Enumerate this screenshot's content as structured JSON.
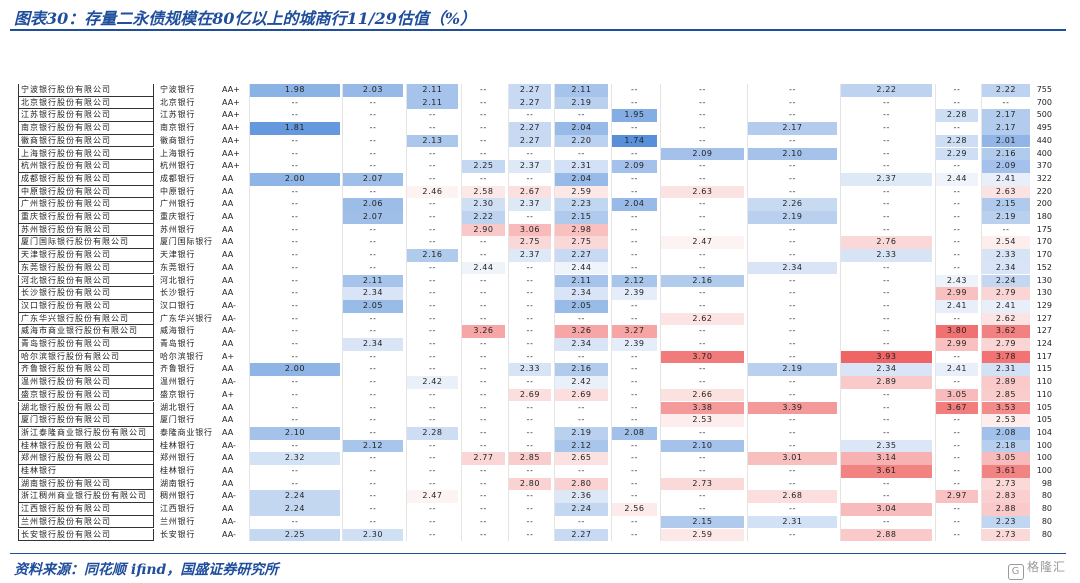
{
  "title": "图表30：存量二永债规模在80亿以上的城商行11/29估值（%）",
  "source": "资料来源：同花顺 ifind，国盛证券研究所",
  "watermark": "格隆汇",
  "colors": {
    "blue": "#4a86d6",
    "red": "#ee5a5a",
    "brand": "#1f4e9c"
  },
  "cell_scale": {
    "min": 1.74,
    "mid": 2.45,
    "max": 3.93
  },
  "rows": [
    {
      "name": "宁波银行股份有限公司",
      "short": "宁波银行",
      "rating": "AA+",
      "values": [
        "1.98",
        "2.03",
        "2.11",
        "--",
        "2.27",
        "2.11",
        "--",
        "--",
        "--",
        "2.22",
        "--",
        "2.22"
      ],
      "size": "755"
    },
    {
      "name": "北京银行股份有限公司",
      "short": "北京银行",
      "rating": "AA+",
      "values": [
        "--",
        "--",
        "2.11",
        "--",
        "2.27",
        "2.19",
        "--",
        "--",
        "--",
        "--",
        "--",
        "--"
      ],
      "size": "700"
    },
    {
      "name": "江苏银行股份有限公司",
      "short": "江苏银行",
      "rating": "AA+",
      "values": [
        "--",
        "--",
        "--",
        "--",
        "--",
        "--",
        "1.95",
        "--",
        "--",
        "--",
        "2.28",
        "2.17"
      ],
      "size": "500"
    },
    {
      "name": "南京银行股份有限公司",
      "short": "南京银行",
      "rating": "AA+",
      "values": [
        "1.81",
        "--",
        "--",
        "--",
        "2.27",
        "2.04",
        "--",
        "--",
        "2.17",
        "--",
        "--",
        "2.17"
      ],
      "size": "495"
    },
    {
      "name": "徽商银行股份有限公司",
      "short": "徽商银行",
      "rating": "AA+",
      "values": [
        "--",
        "--",
        "2.13",
        "--",
        "2.27",
        "2.20",
        "1.74",
        "--",
        "--",
        "--",
        "2.28",
        "2.01"
      ],
      "size": "440"
    },
    {
      "name": "上海银行股份有限公司",
      "short": "上海银行",
      "rating": "AA+",
      "values": [
        "--",
        "--",
        "--",
        "--",
        "--",
        "--",
        "--",
        "2.09",
        "2.10",
        "--",
        "2.29",
        "2.16"
      ],
      "size": "400"
    },
    {
      "name": "杭州银行股份有限公司",
      "short": "杭州银行",
      "rating": "AA+",
      "values": [
        "--",
        "--",
        "--",
        "2.25",
        "2.37",
        "2.31",
        "2.09",
        "--",
        "--",
        "--",
        "--",
        "2.09"
      ],
      "size": "370"
    },
    {
      "name": "成都银行股份有限公司",
      "short": "成都银行",
      "rating": "AA",
      "values": [
        "2.00",
        "2.07",
        "--",
        "--",
        "--",
        "2.04",
        "--",
        "--",
        "--",
        "2.37",
        "2.44",
        "2.41"
      ],
      "size": "322"
    },
    {
      "name": "中原银行股份有限公司",
      "short": "中原银行",
      "rating": "AA",
      "values": [
        "--",
        "--",
        "2.46",
        "2.58",
        "2.67",
        "2.59",
        "--",
        "2.63",
        "--",
        "--",
        "--",
        "2.63"
      ],
      "size": "220"
    },
    {
      "name": "广州银行股份有限公司",
      "short": "广州银行",
      "rating": "AA",
      "values": [
        "--",
        "2.06",
        "--",
        "2.30",
        "2.37",
        "2.23",
        "2.04",
        "--",
        "2.26",
        "--",
        "--",
        "2.15"
      ],
      "size": "200"
    },
    {
      "name": "重庆银行股份有限公司",
      "short": "重庆银行",
      "rating": "AA",
      "values": [
        "--",
        "2.07",
        "--",
        "2.22",
        "--",
        "2.15",
        "--",
        "--",
        "2.19",
        "--",
        "--",
        "2.19"
      ],
      "size": "180"
    },
    {
      "name": "苏州银行股份有限公司",
      "short": "苏州银行",
      "rating": "AA",
      "values": [
        "--",
        "--",
        "--",
        "2.90",
        "3.06",
        "2.98",
        "--",
        "--",
        "--",
        "--",
        "--",
        "--"
      ],
      "size": "175"
    },
    {
      "name": "厦门国际银行股份有限公司",
      "short": "厦门国际银行",
      "rating": "AA",
      "values": [
        "--",
        "--",
        "--",
        "--",
        "2.75",
        "2.75",
        "--",
        "2.47",
        "--",
        "2.76",
        "--",
        "2.54"
      ],
      "size": "170"
    },
    {
      "name": "天津银行股份有限公司",
      "short": "天津银行",
      "rating": "AA",
      "values": [
        "--",
        "--",
        "2.16",
        "--",
        "2.37",
        "2.27",
        "--",
        "--",
        "--",
        "2.33",
        "--",
        "2.33"
      ],
      "size": "170"
    },
    {
      "name": "东莞银行股份有限公司",
      "short": "东莞银行",
      "rating": "AA",
      "values": [
        "--",
        "--",
        "--",
        "2.44",
        "--",
        "2.44",
        "--",
        "--",
        "2.34",
        "--",
        "--",
        "2.34"
      ],
      "size": "152"
    },
    {
      "name": "河北银行股份有限公司",
      "short": "河北银行",
      "rating": "AA",
      "values": [
        "--",
        "2.11",
        "--",
        "--",
        "--",
        "2.11",
        "2.12",
        "2.16",
        "--",
        "--",
        "2.43",
        "2.24"
      ],
      "size": "130"
    },
    {
      "name": "长沙银行股份有限公司",
      "short": "长沙银行",
      "rating": "AA",
      "values": [
        "--",
        "2.34",
        "--",
        "--",
        "--",
        "2.34",
        "2.39",
        "--",
        "--",
        "--",
        "2.99",
        "2.79"
      ],
      "size": "130"
    },
    {
      "name": "汉口银行股份有限公司",
      "short": "汉口银行",
      "rating": "AA-",
      "values": [
        "--",
        "2.05",
        "--",
        "--",
        "--",
        "2.05",
        "--",
        "--",
        "--",
        "--",
        "2.41",
        "2.41"
      ],
      "size": "129"
    },
    {
      "name": "广东华兴银行股份有限公司",
      "short": "广东华兴银行",
      "rating": "AA-",
      "values": [
        "--",
        "--",
        "--",
        "--",
        "--",
        "--",
        "--",
        "2.62",
        "--",
        "--",
        "--",
        "2.62"
      ],
      "size": "127"
    },
    {
      "name": "威海市商业银行股份有限公司",
      "short": "威海银行",
      "rating": "AA-",
      "values": [
        "--",
        "--",
        "--",
        "3.26",
        "--",
        "3.26",
        "3.27",
        "--",
        "--",
        "--",
        "3.80",
        "3.62"
      ],
      "size": "127"
    },
    {
      "name": "青岛银行股份有限公司",
      "short": "青岛银行",
      "rating": "AA",
      "values": [
        "--",
        "2.34",
        "--",
        "--",
        "--",
        "2.34",
        "2.39",
        "--",
        "--",
        "--",
        "2.99",
        "2.79"
      ],
      "size": "124"
    },
    {
      "name": "哈尔滨银行股份有限公司",
      "short": "哈尔滨银行",
      "rating": "A+",
      "values": [
        "--",
        "--",
        "--",
        "--",
        "--",
        "--",
        "--",
        "3.70",
        "--",
        "3.93",
        "--",
        "3.78"
      ],
      "size": "117"
    },
    {
      "name": "齐鲁银行股份有限公司",
      "short": "齐鲁银行",
      "rating": "AA",
      "values": [
        "2.00",
        "--",
        "--",
        "--",
        "2.33",
        "2.16",
        "--",
        "--",
        "2.19",
        "2.34",
        "2.41",
        "2.31"
      ],
      "size": "115"
    },
    {
      "name": "温州银行股份有限公司",
      "short": "温州银行",
      "rating": "AA-",
      "values": [
        "--",
        "--",
        "2.42",
        "--",
        "--",
        "2.42",
        "--",
        "--",
        "--",
        "2.89",
        "--",
        "2.89"
      ],
      "size": "110"
    },
    {
      "name": "盛京银行股份有限公司",
      "short": "盛京银行",
      "rating": "A+",
      "values": [
        "--",
        "--",
        "--",
        "--",
        "2.69",
        "2.69",
        "--",
        "2.66",
        "--",
        "--",
        "3.05",
        "2.85"
      ],
      "size": "110"
    },
    {
      "name": "湖北银行股份有限公司",
      "short": "湖北银行",
      "rating": "AA",
      "values": [
        "--",
        "--",
        "--",
        "--",
        "--",
        "--",
        "--",
        "3.38",
        "3.39",
        "--",
        "3.67",
        "3.53"
      ],
      "size": "105"
    },
    {
      "name": "厦门银行股份有限公司",
      "short": "厦门银行",
      "rating": "AA",
      "values": [
        "--",
        "--",
        "--",
        "--",
        "--",
        "--",
        "--",
        "2.53",
        "--",
        "--",
        "--",
        "2.53"
      ],
      "size": "105"
    },
    {
      "name": "浙江泰隆商业银行股份有限公司",
      "short": "泰隆商业银行",
      "rating": "AA",
      "values": [
        "2.10",
        "--",
        "2.28",
        "--",
        "--",
        "2.19",
        "2.08",
        "--",
        "--",
        "--",
        "--",
        "2.08"
      ],
      "size": "104"
    },
    {
      "name": "桂林银行股份有限公司",
      "short": "桂林银行",
      "rating": "AA-",
      "values": [
        "--",
        "2.12",
        "--",
        "--",
        "--",
        "2.12",
        "--",
        "2.10",
        "--",
        "2.35",
        "--",
        "2.18"
      ],
      "size": "100"
    },
    {
      "name": "郑州银行股份有限公司",
      "short": "郑州银行",
      "rating": "AA",
      "values": [
        "2.32",
        "--",
        "--",
        "2.77",
        "2.85",
        "2.65",
        "--",
        "--",
        "3.01",
        "3.14",
        "--",
        "3.05"
      ],
      "size": "100"
    },
    {
      "name": "桂林银行",
      "short": "桂林银行",
      "rating": "AA",
      "values": [
        "--",
        "--",
        "--",
        "--",
        "--",
        "--",
        "--",
        "--",
        "--",
        "3.61",
        "--",
        "3.61"
      ],
      "size": "100"
    },
    {
      "name": "湖南银行股份有限公司",
      "short": "湖南银行",
      "rating": "AA",
      "values": [
        "--",
        "--",
        "--",
        "--",
        "2.80",
        "2.80",
        "--",
        "2.73",
        "--",
        "--",
        "--",
        "2.73"
      ],
      "size": "98"
    },
    {
      "name": "浙江稠州商业银行股份有限公司",
      "short": "稠州银行",
      "rating": "AA-",
      "values": [
        "2.24",
        "--",
        "2.47",
        "--",
        "--",
        "2.36",
        "--",
        "--",
        "2.68",
        "--",
        "2.97",
        "2.83"
      ],
      "size": "80"
    },
    {
      "name": "江西银行股份有限公司",
      "short": "江西银行",
      "rating": "AA",
      "values": [
        "2.24",
        "--",
        "--",
        "--",
        "--",
        "2.24",
        "2.56",
        "--",
        "--",
        "3.04",
        "--",
        "2.88"
      ],
      "size": "80"
    },
    {
      "name": "兰州银行股份有限公司",
      "short": "兰州银行",
      "rating": "AA-",
      "values": [
        "--",
        "--",
        "--",
        "--",
        "--",
        "--",
        "--",
        "2.15",
        "2.31",
        "--",
        "--",
        "2.23"
      ],
      "size": "80"
    },
    {
      "name": "长安银行股份有限公司",
      "short": "长安银行",
      "rating": "AA-",
      "values": [
        "2.25",
        "2.30",
        "--",
        "--",
        "--",
        "2.27",
        "--",
        "2.59",
        "--",
        "2.88",
        "--",
        "2.73"
      ],
      "size": "80"
    }
  ]
}
